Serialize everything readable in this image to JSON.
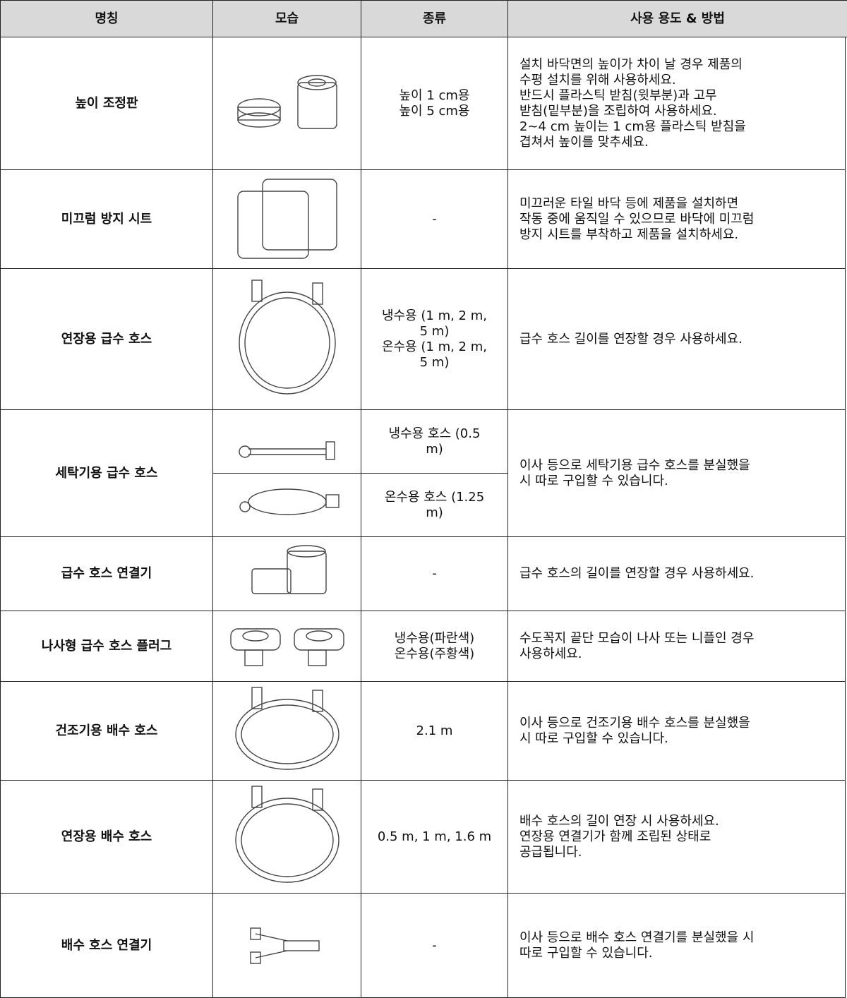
{
  "table": {
    "header": [
      "명칭",
      "모습",
      "종류",
      "사용 용도 & 방법"
    ],
    "rows": [
      {
        "name": "높이 조정판",
        "types": [
          [
            "높이 1 cm용",
            "높이 5 cm용"
          ]
        ],
        "usage": [
          "설치 바닥면의 높이가 차이 날 경우 제품의",
          "수평 설치를 위해 사용하세요.",
          "반드시 플라스틱 받침(윗부분)과 고무",
          "받침(밑부분)을 조립하여 사용하세요.",
          "2~4 cm 높이는 1 cm용 플라스틱 받침을",
          "겹쳐서 높이를 맞추세요."
        ]
      },
      {
        "name": "미끄럼 방지 시트",
        "types": [
          [
            "-"
          ]
        ],
        "usage": [
          "미끄러운 타일 바닥 등에 제품을 설치하면",
          "작동 중에 움직일 수 있으므로 바닥에 미끄럼",
          "방지 시트를 부착하고 제품을 설치하세요."
        ]
      },
      {
        "name": "연장용 급수 호스",
        "types": [
          [
            "냉수용 (1 m, 2 m,",
            "5 m)",
            "온수용 (1 m, 2 m,",
            "5 m)"
          ]
        ],
        "usage": [
          "급수 호스 길이를 연장할 경우 사용하세요."
        ]
      },
      {
        "name": "세탁기용 급수 호스",
        "types": [
          [
            "냉수용 호스 (0.5",
            "m)"
          ],
          [
            "온수용 호스 (1.25",
            "m)"
          ]
        ],
        "usage": [
          "이사 등으로 세탁기용 급수 호스를 분실했을",
          "시 따로 구입할 수 있습니다."
        ]
      },
      {
        "name": "급수 호스 연결기",
        "types": [
          [
            "-"
          ]
        ],
        "usage": [
          "급수 호스의 길이를 연장할 경우 사용하세요."
        ]
      },
      {
        "name": "나사형 급수 호스 플러그",
        "types": [
          [
            "냉수용(파란색)",
            "온수용(주황색)"
          ]
        ],
        "usage": [
          "수도꼭지 끝단 모습이 나사 또는 니플인 경우",
          "사용하세요."
        ]
      },
      {
        "name": "건조기용 배수 호스",
        "types": [
          [
            "2.1 m"
          ]
        ],
        "usage": [
          "이사 등으로 건조기용 배수 호스를 분실했을",
          "시 따로 구입할 수 있습니다."
        ]
      },
      {
        "name": "연장용 배수 호스",
        "types": [
          [
            "0.5 m, 1 m, 1.6 m"
          ]
        ],
        "usage": [
          "배수 호스의 길이 연장 시 사용하세요.",
          "연장용 연결기가 함께 조립된 상태로",
          "공급됩니다."
        ]
      },
      {
        "name": "배수 호스 연결기",
        "types": [
          [
            "-"
          ]
        ],
        "usage": [
          "이사 등으로 배수 호스 연결기를 분실했을 시",
          "따로 구입할 수 있습니다."
        ]
      }
    ]
  }
}
